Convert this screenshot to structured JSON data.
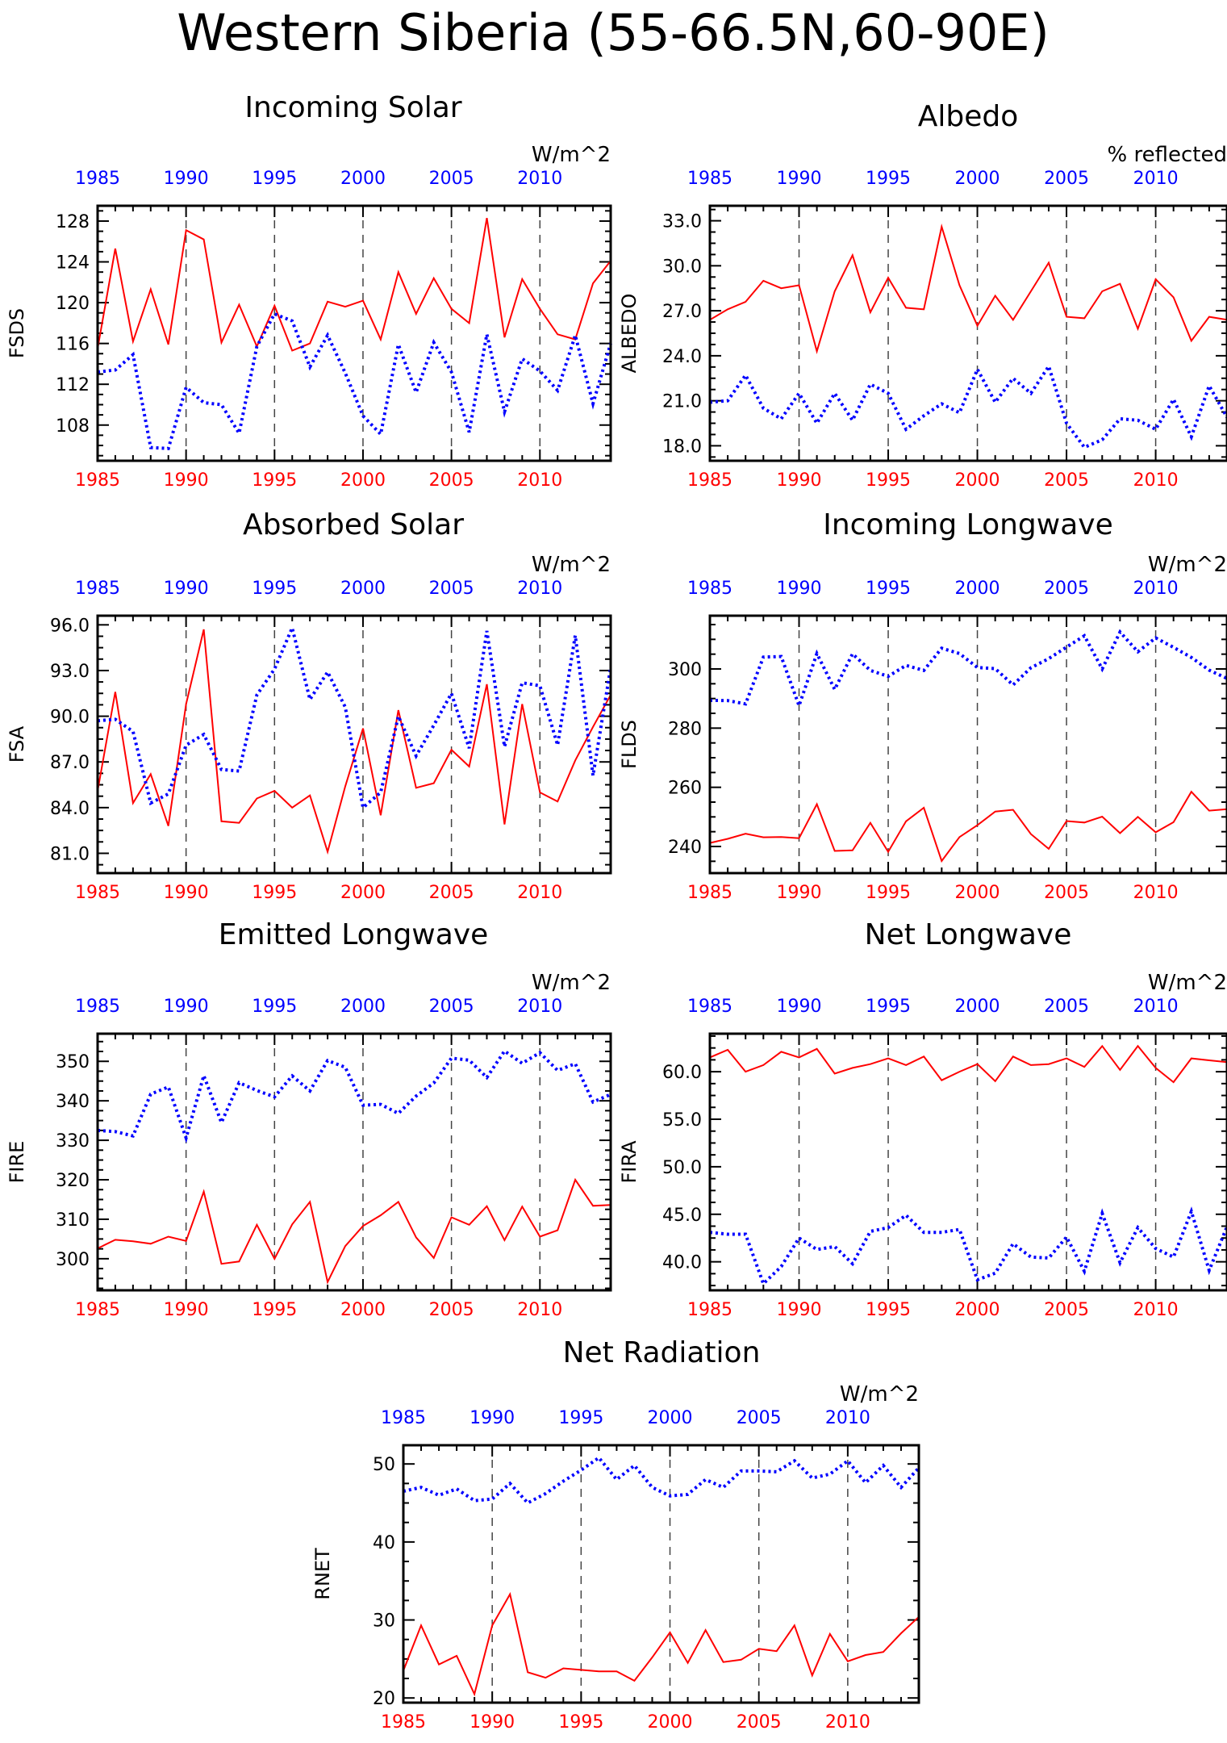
{
  "page_title": "Western Siberia (55-66.5N,60-90E)",
  "colors": {
    "red_series": "#ff0000",
    "blue_series": "#0000ff",
    "axis": "#000000",
    "vline": "#444444"
  },
  "chart_data": [
    {
      "type": "line",
      "title": "Incoming Solar",
      "units": "W/m^2",
      "ylabel": "FSDS",
      "ylim": [
        104.5,
        129.5
      ],
      "yticks": [
        108,
        112,
        116,
        120,
        124,
        128
      ],
      "ytick_labels": [
        "108",
        "112",
        "116",
        "120",
        "124",
        "128"
      ],
      "bottom_xlabels": [
        "1985",
        "1990",
        "1995",
        "2000",
        "2005",
        "2010"
      ],
      "top_xlabels": [
        "1985",
        "1990",
        "1995",
        "2000",
        "2005",
        "2010"
      ],
      "x": [
        1985,
        1986,
        1987,
        1988,
        1989,
        1990,
        1991,
        1992,
        1993,
        1994,
        1995,
        1996,
        1997,
        1998,
        1999,
        2000,
        2001,
        2002,
        2003,
        2004,
        2005,
        2006,
        2007,
        2008,
        2009,
        2010,
        2011,
        2012,
        2013,
        2014
      ],
      "red": [
        115.5,
        125.3,
        116.2,
        121.3,
        115.9,
        127.1,
        126.2,
        116.1,
        119.8,
        115.7,
        119.7,
        115.3,
        116.0,
        120.1,
        119.6,
        120.2,
        116.4,
        123.0,
        118.9,
        122.4,
        119.4,
        118.0,
        128.3,
        116.6,
        122.3,
        119.4,
        116.9,
        116.4,
        121.9,
        124.1
      ],
      "blue": [
        113.2,
        113.4,
        114.9,
        105.8,
        105.7,
        111.7,
        110.2,
        110.0,
        107.2,
        115.7,
        118.9,
        118.2,
        113.7,
        116.8,
        113.1,
        108.9,
        107.1,
        115.9,
        111.2,
        116.1,
        113.2,
        107.3,
        116.9,
        109.3,
        114.5,
        113.3,
        111.4,
        116.8,
        110.1,
        116.0
      ]
    },
    {
      "type": "line",
      "title": "Albedo",
      "units": "% reflected",
      "ylabel": "ALBEDO",
      "ylim": [
        17.0,
        34.0
      ],
      "yticks": [
        18,
        21,
        24,
        27,
        30,
        33
      ],
      "ytick_labels": [
        "18.0",
        "21.0",
        "24.0",
        "27.0",
        "30.0",
        "33.0"
      ],
      "bottom_xlabels": [
        "1985",
        "1990",
        "1995",
        "2000",
        "2005",
        "2010"
      ],
      "top_xlabels": [
        "1985",
        "1990",
        "1995",
        "2000",
        "2005",
        "2010"
      ],
      "x": [
        1985,
        1986,
        1987,
        1988,
        1989,
        1990,
        1991,
        1992,
        1993,
        1994,
        1995,
        1996,
        1997,
        1998,
        1999,
        2000,
        2001,
        2002,
        2003,
        2004,
        2005,
        2006,
        2007,
        2008,
        2009,
        2010,
        2011,
        2012,
        2013,
        2014
      ],
      "red": [
        26.4,
        27.1,
        27.6,
        29.0,
        28.5,
        28.7,
        24.3,
        28.3,
        30.7,
        26.9,
        29.2,
        27.2,
        27.1,
        32.6,
        28.7,
        26.0,
        28.0,
        26.4,
        28.3,
        30.2,
        26.6,
        26.5,
        28.3,
        28.8,
        25.8,
        29.1,
        27.9,
        25.0,
        26.6,
        26.4
      ],
      "blue": [
        20.9,
        21.0,
        22.7,
        20.5,
        19.8,
        21.5,
        19.5,
        21.5,
        19.7,
        22.1,
        21.5,
        19.1,
        20.0,
        20.8,
        20.2,
        23.1,
        20.9,
        22.5,
        21.5,
        23.3,
        19.5,
        17.9,
        18.4,
        19.8,
        19.7,
        19.1,
        21.1,
        18.6,
        22.0,
        19.9
      ]
    },
    {
      "type": "line",
      "title": "Absorbed Solar",
      "units": "W/m^2",
      "ylabel": "FSA",
      "ylim": [
        79.7,
        96.6
      ],
      "yticks": [
        81,
        84,
        87,
        90,
        93,
        96
      ],
      "ytick_labels": [
        "81.0",
        "84.0",
        "87.0",
        "90.0",
        "93.0",
        "96.0"
      ],
      "bottom_xlabels": [
        "1985",
        "1990",
        "1995",
        "2000",
        "2005",
        "2010"
      ],
      "top_xlabels": [
        "1985",
        "1990",
        "1995",
        "2000",
        "2005",
        "2010"
      ],
      "x": [
        1985,
        1986,
        1987,
        1988,
        1989,
        1990,
        1991,
        1992,
        1993,
        1994,
        1995,
        1996,
        1997,
        1998,
        1999,
        2000,
        2001,
        2002,
        2003,
        2004,
        2005,
        2006,
        2007,
        2008,
        2009,
        2010,
        2011,
        2012,
        2013,
        2014
      ],
      "red": [
        85.1,
        91.6,
        84.3,
        86.2,
        82.8,
        90.8,
        95.7,
        83.1,
        83.0,
        84.6,
        85.1,
        84.0,
        84.8,
        81.1,
        85.4,
        89.2,
        83.5,
        90.4,
        85.3,
        85.6,
        87.8,
        86.7,
        92.1,
        82.9,
        90.8,
        85.0,
        84.4,
        87.1,
        89.3,
        91.4
      ],
      "blue": [
        89.7,
        89.8,
        89.0,
        84.3,
        84.9,
        88.1,
        88.8,
        86.5,
        86.4,
        91.4,
        93.1,
        95.8,
        91.1,
        92.9,
        90.6,
        84.0,
        85.0,
        90.0,
        87.4,
        89.4,
        91.5,
        87.9,
        95.6,
        88.0,
        92.2,
        92.0,
        88.1,
        95.3,
        86.1,
        93.2
      ]
    },
    {
      "type": "line",
      "title": "Incoming Longwave",
      "units": "W/m^2",
      "ylabel": "FLDS",
      "ylim": [
        231.0,
        318.0
      ],
      "yticks": [
        240,
        260,
        280,
        300
      ],
      "ytick_labels": [
        "240",
        "260",
        "280",
        "300"
      ],
      "bottom_xlabels": [
        "1985",
        "1990",
        "1995",
        "2000",
        "2005",
        "2010"
      ],
      "top_xlabels": [
        "1985",
        "1990",
        "1995",
        "2000",
        "2005",
        "2010"
      ],
      "x": [
        1985,
        1986,
        1987,
        1988,
        1989,
        1990,
        1991,
        1992,
        1993,
        1994,
        1995,
        1996,
        1997,
        1998,
        1999,
        2000,
        2001,
        2002,
        2003,
        2004,
        2005,
        2006,
        2007,
        2008,
        2009,
        2010,
        2011,
        2012,
        2013,
        2014
      ],
      "red": [
        241.2,
        242.6,
        244.3,
        243.1,
        243.2,
        242.8,
        254.3,
        238.5,
        238.7,
        248.0,
        238.2,
        248.5,
        253.1,
        235.1,
        243.2,
        247.2,
        251.8,
        252.4,
        244.2,
        239.2,
        248.6,
        248.1,
        250.1,
        244.5,
        250.0,
        244.8,
        248.2,
        258.5,
        252.1,
        252.6
      ],
      "blue": [
        289.4,
        289.3,
        288.2,
        304.0,
        304.2,
        287.6,
        305.2,
        293.1,
        305.1,
        299.5,
        297.5,
        301.2,
        299.5,
        307.0,
        305.2,
        300.5,
        300.1,
        294.6,
        300.4,
        303.5,
        307.4,
        311.2,
        300.0,
        312.5,
        305.8,
        310.5,
        307.3,
        303.9,
        299.6,
        296.8
      ]
    },
    {
      "type": "line",
      "title": "Emitted Longwave",
      "units": "W/m^2",
      "ylabel": "FIRE",
      "ylim": [
        292.0,
        357.0
      ],
      "yticks": [
        300,
        310,
        320,
        330,
        340,
        350
      ],
      "ytick_labels": [
        "300",
        "310",
        "320",
        "330",
        "340",
        "350"
      ],
      "bottom_xlabels": [
        "1985",
        "1990",
        "1995",
        "2000",
        "2005",
        "2010"
      ],
      "top_xlabels": [
        "1985",
        "1990",
        "1995",
        "2000",
        "2005",
        "2010"
      ],
      "x": [
        1985,
        1986,
        1987,
        1988,
        1989,
        1990,
        1991,
        1992,
        1993,
        1994,
        1995,
        1996,
        1997,
        1998,
        1999,
        2000,
        2001,
        2002,
        2003,
        2004,
        2005,
        2006,
        2007,
        2008,
        2009,
        2010,
        2011,
        2012,
        2013,
        2014
      ],
      "red": [
        302.6,
        304.8,
        304.4,
        303.8,
        305.6,
        304.5,
        317.0,
        298.7,
        299.3,
        308.6,
        300.0,
        308.7,
        314.4,
        294.1,
        303.2,
        308.3,
        311.0,
        314.4,
        305.4,
        300.2,
        310.5,
        308.6,
        313.3,
        304.7,
        313.2,
        305.6,
        307.2,
        320.0,
        313.4,
        313.6
      ],
      "blue": [
        332.5,
        332.2,
        331.1,
        341.7,
        343.5,
        330.6,
        346.4,
        334.5,
        344.6,
        342.6,
        341.0,
        346.3,
        342.5,
        350.2,
        348.5,
        338.9,
        339.1,
        336.8,
        341.2,
        344.5,
        350.8,
        350.3,
        345.9,
        352.6,
        349.5,
        352.2,
        347.7,
        349.4,
        339.7,
        341.6
      ]
    },
    {
      "type": "line",
      "title": "Net Longwave",
      "units": "W/m^2",
      "ylabel": "FIRA",
      "ylim": [
        37.0,
        64.0
      ],
      "yticks": [
        40,
        45,
        50,
        55,
        60
      ],
      "ytick_labels": [
        "40.0",
        "45.0",
        "50.0",
        "55.0",
        "60.0"
      ],
      "bottom_xlabels": [
        "1985",
        "1990",
        "1995",
        "2000",
        "2005",
        "2010"
      ],
      "top_xlabels": [
        "1985",
        "1990",
        "1995",
        "2000",
        "2005",
        "2010"
      ],
      "x": [
        1985,
        1986,
        1987,
        1988,
        1989,
        1990,
        1991,
        1992,
        1993,
        1994,
        1995,
        1996,
        1997,
        1998,
        1999,
        2000,
        2001,
        2002,
        2003,
        2004,
        2005,
        2006,
        2007,
        2008,
        2009,
        2010,
        2011,
        2012,
        2013,
        2014
      ],
      "red": [
        61.5,
        62.3,
        60.0,
        60.7,
        62.1,
        61.5,
        62.4,
        59.8,
        60.4,
        60.8,
        61.4,
        60.7,
        61.6,
        59.1,
        60.0,
        60.8,
        59.0,
        61.6,
        60.7,
        60.8,
        61.4,
        60.5,
        62.7,
        60.2,
        62.7,
        60.4,
        58.9,
        61.4,
        61.2,
        61.0
      ],
      "blue": [
        43.1,
        42.9,
        42.9,
        37.7,
        39.5,
        42.5,
        41.3,
        41.6,
        39.8,
        43.2,
        43.6,
        44.9,
        43.1,
        43.1,
        43.4,
        38.1,
        38.8,
        41.9,
        40.5,
        40.4,
        42.6,
        39.0,
        45.1,
        39.9,
        43.6,
        41.4,
        40.5,
        45.3,
        39.1,
        43.7
      ]
    },
    {
      "type": "line",
      "title": "Net Radiation",
      "units": "W/m^2",
      "ylabel": "RNET",
      "ylim": [
        19.4,
        52.4
      ],
      "yticks": [
        20,
        30,
        40,
        50
      ],
      "ytick_labels": [
        "20",
        "30",
        "40",
        "50"
      ],
      "bottom_xlabels": [
        "1985",
        "1990",
        "1995",
        "2000",
        "2005",
        "2010"
      ],
      "top_xlabels": [
        "1985",
        "1990",
        "1995",
        "2000",
        "2005",
        "2010"
      ],
      "x": [
        1985,
        1986,
        1987,
        1988,
        1989,
        1990,
        1991,
        1992,
        1993,
        1994,
        1995,
        1996,
        1997,
        1998,
        1999,
        2000,
        2001,
        2002,
        2003,
        2004,
        2005,
        2006,
        2007,
        2008,
        2009,
        2010,
        2011,
        2012,
        2013,
        2014
      ],
      "red": [
        23.5,
        29.3,
        24.3,
        25.4,
        20.5,
        29.3,
        33.3,
        23.3,
        22.6,
        23.8,
        23.6,
        23.4,
        23.4,
        22.2,
        25.2,
        28.4,
        24.5,
        28.7,
        24.6,
        24.9,
        26.3,
        26.0,
        29.3,
        22.9,
        28.2,
        24.7,
        25.5,
        25.9,
        28.3,
        30.4
      ],
      "blue": [
        46.5,
        47.0,
        46.0,
        46.8,
        45.3,
        45.5,
        47.5,
        45.0,
        46.2,
        47.8,
        49.2,
        50.8,
        48.0,
        49.8,
        47.0,
        45.9,
        46.1,
        48.0,
        47.0,
        49.1,
        49.1,
        49.0,
        50.4,
        48.2,
        48.7,
        50.4,
        47.6,
        49.8,
        47.0,
        49.5
      ]
    }
  ]
}
